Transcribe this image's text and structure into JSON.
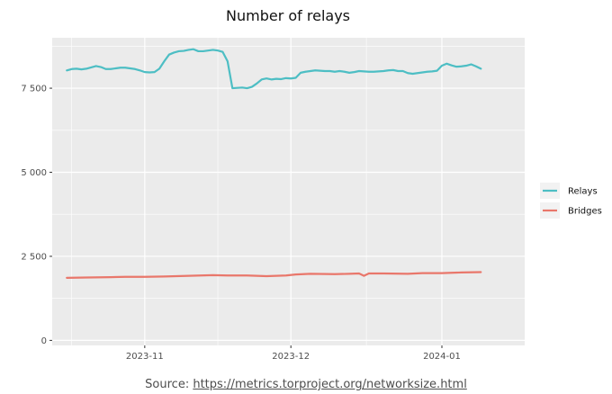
{
  "chart_data": {
    "type": "line",
    "title": "Number of relays",
    "xlabel": "",
    "ylabel": "",
    "x_range": [
      "2023-10-13",
      "2024-01-18"
    ],
    "ylim": [
      -150,
      9000
    ],
    "y_ticks": [
      {
        "value": 0,
        "label": "0"
      },
      {
        "value": 2500,
        "label": "2 500"
      },
      {
        "value": 5000,
        "label": "5 000"
      },
      {
        "value": 7500,
        "label": "7 500"
      }
    ],
    "x_ticks": [
      {
        "value": "2023-11-01",
        "label": "2023-11"
      },
      {
        "value": "2023-12-01",
        "label": "2023-12"
      },
      {
        "value": "2024-01-01",
        "label": "2024-01"
      }
    ],
    "grid": true,
    "legend_position": "right",
    "series": [
      {
        "name": "Relays",
        "color": "#4DBEC4",
        "points": [
          [
            "2023-10-16",
            8030
          ],
          [
            "2023-10-17",
            8070
          ],
          [
            "2023-10-18",
            8080
          ],
          [
            "2023-10-19",
            8060
          ],
          [
            "2023-10-20",
            8080
          ],
          [
            "2023-10-21",
            8120
          ],
          [
            "2023-10-22",
            8160
          ],
          [
            "2023-10-23",
            8130
          ],
          [
            "2023-10-24",
            8070
          ],
          [
            "2023-10-25",
            8070
          ],
          [
            "2023-10-26",
            8090
          ],
          [
            "2023-10-27",
            8110
          ],
          [
            "2023-10-28",
            8110
          ],
          [
            "2023-10-29",
            8090
          ],
          [
            "2023-10-30",
            8070
          ],
          [
            "2023-10-31",
            8030
          ],
          [
            "2023-11-01",
            7980
          ],
          [
            "2023-11-02",
            7970
          ],
          [
            "2023-11-03",
            7980
          ],
          [
            "2023-11-04",
            8080
          ],
          [
            "2023-11-05",
            8300
          ],
          [
            "2023-11-06",
            8500
          ],
          [
            "2023-11-07",
            8560
          ],
          [
            "2023-11-08",
            8600
          ],
          [
            "2023-11-09",
            8610
          ],
          [
            "2023-11-10",
            8640
          ],
          [
            "2023-11-11",
            8660
          ],
          [
            "2023-11-12",
            8600
          ],
          [
            "2023-11-13",
            8600
          ],
          [
            "2023-11-14",
            8620
          ],
          [
            "2023-11-15",
            8640
          ],
          [
            "2023-11-16",
            8620
          ],
          [
            "2023-11-17",
            8580
          ],
          [
            "2023-11-18",
            8300
          ],
          [
            "2023-11-19",
            7500
          ],
          [
            "2023-11-20",
            7510
          ],
          [
            "2023-11-21",
            7520
          ],
          [
            "2023-11-22",
            7500
          ],
          [
            "2023-11-23",
            7540
          ],
          [
            "2023-11-24",
            7640
          ],
          [
            "2023-11-25",
            7760
          ],
          [
            "2023-11-26",
            7790
          ],
          [
            "2023-11-27",
            7760
          ],
          [
            "2023-11-28",
            7780
          ],
          [
            "2023-11-29",
            7770
          ],
          [
            "2023-11-30",
            7800
          ],
          [
            "2023-12-01",
            7790
          ],
          [
            "2023-12-02",
            7810
          ],
          [
            "2023-12-03",
            7960
          ],
          [
            "2023-12-04",
            7990
          ],
          [
            "2023-12-05",
            8010
          ],
          [
            "2023-12-06",
            8030
          ],
          [
            "2023-12-07",
            8020
          ],
          [
            "2023-12-08",
            8010
          ],
          [
            "2023-12-09",
            8010
          ],
          [
            "2023-12-10",
            7990
          ],
          [
            "2023-12-11",
            8010
          ],
          [
            "2023-12-12",
            7990
          ],
          [
            "2023-12-13",
            7960
          ],
          [
            "2023-12-14",
            7980
          ],
          [
            "2023-12-15",
            8010
          ],
          [
            "2023-12-16",
            8000
          ],
          [
            "2023-12-17",
            7990
          ],
          [
            "2023-12-18",
            7990
          ],
          [
            "2023-12-19",
            8000
          ],
          [
            "2023-12-20",
            8010
          ],
          [
            "2023-12-21",
            8030
          ],
          [
            "2023-12-22",
            8040
          ],
          [
            "2023-12-23",
            8010
          ],
          [
            "2023-12-24",
            8010
          ],
          [
            "2023-12-25",
            7950
          ],
          [
            "2023-12-26",
            7930
          ],
          [
            "2023-12-27",
            7950
          ],
          [
            "2023-12-28",
            7970
          ],
          [
            "2023-12-29",
            7990
          ],
          [
            "2023-12-30",
            8000
          ],
          [
            "2023-12-31",
            8020
          ],
          [
            "2024-01-01",
            8170
          ],
          [
            "2024-01-02",
            8230
          ],
          [
            "2024-01-03",
            8180
          ],
          [
            "2024-01-04",
            8140
          ],
          [
            "2024-01-05",
            8150
          ],
          [
            "2024-01-06",
            8170
          ],
          [
            "2024-01-07",
            8210
          ],
          [
            "2024-01-08",
            8150
          ],
          [
            "2024-01-09",
            8080
          ]
        ]
      },
      {
        "name": "Bridges",
        "color": "#E9776B",
        "points": [
          [
            "2023-10-16",
            1860
          ],
          [
            "2023-10-20",
            1870
          ],
          [
            "2023-10-25",
            1880
          ],
          [
            "2023-10-28",
            1890
          ],
          [
            "2023-11-01",
            1890
          ],
          [
            "2023-11-05",
            1900
          ],
          [
            "2023-11-10",
            1920
          ],
          [
            "2023-11-15",
            1940
          ],
          [
            "2023-11-18",
            1930
          ],
          [
            "2023-11-22",
            1930
          ],
          [
            "2023-11-26",
            1910
          ],
          [
            "2023-11-30",
            1930
          ],
          [
            "2023-12-02",
            1960
          ],
          [
            "2023-12-05",
            1980
          ],
          [
            "2023-12-10",
            1970
          ],
          [
            "2023-12-13",
            1980
          ],
          [
            "2023-12-15",
            1990
          ],
          [
            "2023-12-16",
            1920
          ],
          [
            "2023-12-17",
            1990
          ],
          [
            "2023-12-20",
            1990
          ],
          [
            "2023-12-25",
            1980
          ],
          [
            "2023-12-28",
            2000
          ],
          [
            "2024-01-01",
            2000
          ],
          [
            "2024-01-05",
            2020
          ],
          [
            "2024-01-09",
            2030
          ]
        ]
      }
    ]
  },
  "source": {
    "prefix": "Source: ",
    "link_text": "https://metrics.torproject.org/networksize.html"
  }
}
